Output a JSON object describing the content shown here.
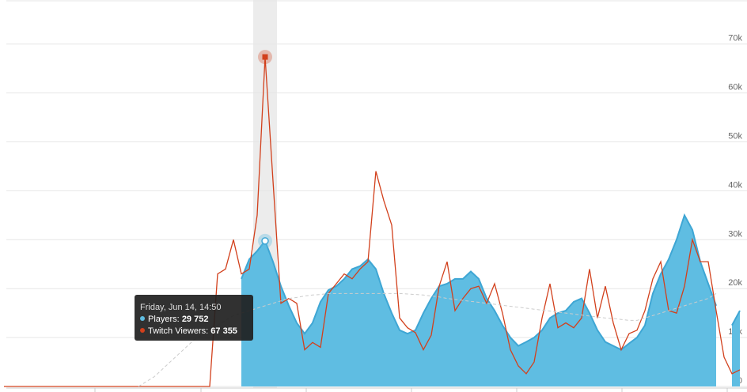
{
  "chart_data": {
    "type": "line",
    "ylim": [
      0,
      79000
    ],
    "yticks": [
      {
        "value": 0,
        "label": "0"
      },
      {
        "value": 10000,
        "label": "10k"
      },
      {
        "value": 20000,
        "label": "20k"
      },
      {
        "value": 30000,
        "label": "30k"
      },
      {
        "value": 40000,
        "label": "40k"
      },
      {
        "value": 50000,
        "label": "50k"
      },
      {
        "value": 60000,
        "label": "60k"
      },
      {
        "value": 70000,
        "label": "70k"
      }
    ],
    "grid": true,
    "series": [
      {
        "color": "#5fbde2",
        "stroke": "#3ea6d4",
        "area": true,
        "values": [
          null,
          null,
          null,
          null,
          null,
          null,
          null,
          null,
          null,
          null,
          null,
          null,
          null,
          null,
          null,
          null,
          null,
          null,
          null,
          null,
          null,
          null,
          null,
          null,
          null,
          null,
          null,
          null,
          null,
          null,
          22000,
          26000,
          27700,
          29752,
          25500,
          20500,
          16500,
          13000,
          10800,
          13000,
          17300,
          19700,
          20500,
          22000,
          24000,
          24600,
          26000,
          24000,
          19000,
          15000,
          11500,
          10800,
          11500,
          15000,
          18000,
          20500,
          21000,
          22000,
          22000,
          23500,
          22000,
          18000,
          15500,
          12500,
          10000,
          8300,
          9100,
          10000,
          11500,
          14000,
          15000,
          15500,
          17300,
          18000,
          15000,
          11500,
          9100,
          8300,
          7500,
          8800,
          10000,
          12500,
          19000,
          23000,
          26000,
          30000,
          35000,
          32000,
          25500,
          21000,
          16500,
          null,
          12500,
          15500
        ]
      },
      {
        "color": "#d2401c",
        "values": [
          0,
          0,
          0,
          0,
          0,
          0,
          0,
          0,
          0,
          0,
          0,
          0,
          0,
          0,
          0,
          0,
          0,
          0,
          0,
          0,
          0,
          0,
          0,
          0,
          0,
          0,
          0,
          23000,
          24000,
          30000,
          23000,
          24000,
          35000,
          67355,
          42000,
          17000,
          18000,
          17000,
          7500,
          9000,
          8000,
          19000,
          21000,
          23000,
          22000,
          24000,
          25500,
          44000,
          38000,
          33000,
          14000,
          12000,
          11000,
          7500,
          10500,
          20500,
          25500,
          15500,
          18000,
          20000,
          20500,
          17000,
          21000,
          15000,
          7500,
          4200,
          2600,
          5000,
          14000,
          21000,
          12000,
          13000,
          12000,
          14000,
          24000,
          14000,
          20500,
          13000,
          7500,
          10800,
          11500,
          15500,
          22000,
          25500,
          15500,
          15000,
          20500,
          30000,
          25500,
          25500,
          15500,
          6000,
          2600,
          3400
        ]
      },
      {
        "color": "#cccccc",
        "dashed": true,
        "values": [
          null,
          null,
          null,
          null,
          null,
          null,
          null,
          null,
          null,
          null,
          null,
          null,
          null,
          null,
          null,
          null,
          null,
          0,
          1000,
          2000,
          3500,
          5000,
          6500,
          8000,
          9500,
          10500,
          11500,
          12500,
          13500,
          14500,
          15000,
          15500,
          16000,
          16500,
          17000,
          17500,
          18000,
          18200,
          18500,
          18700,
          18800,
          19000,
          19000,
          19000,
          19000,
          19000,
          19000,
          19000,
          19000,
          19000,
          19000,
          18900,
          18800,
          18700,
          18500,
          18300,
          18000,
          17800,
          17600,
          17400,
          17200,
          17000,
          16800,
          16600,
          16400,
          16200,
          16000,
          15800,
          15600,
          15400,
          15200,
          15000,
          14800,
          14600,
          14400,
          14200,
          14000,
          13900,
          13700,
          13500,
          13500,
          14000,
          14500,
          15000,
          15500,
          16000,
          16500,
          17000,
          17500,
          18000,
          19000,
          null,
          null,
          null
        ]
      }
    ],
    "highlight": 33,
    "tooltip": {
      "title": "Friday, Jun 14, 14:50",
      "items": [
        {
          "name": "Players:",
          "value": "29 752",
          "series": 0
        },
        {
          "name": "Twitch Viewers:",
          "value": "67 355",
          "series": 1
        }
      ]
    }
  }
}
